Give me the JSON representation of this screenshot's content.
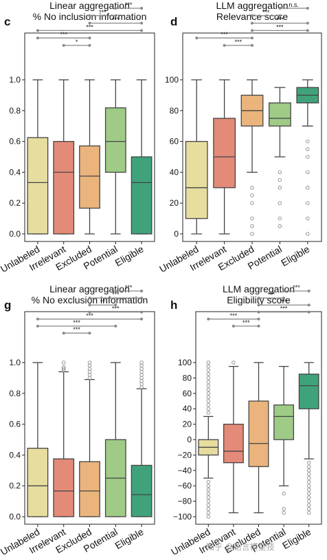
{
  "watermark": "知乎 @语言模型技",
  "colors": [
    "#e6dd9f",
    "#e38a78",
    "#eab47c",
    "#9fcb87",
    "#3fa27b"
  ],
  "chart_data": [
    {
      "panel": "c",
      "type": "box",
      "title": [
        "Linear aggregation",
        "% No inclusion information"
      ],
      "categories": [
        "Unlabeled",
        "Irrelevant",
        "Excluded",
        "Potential",
        "Eligible"
      ],
      "ylim": [
        -0.05,
        1.1
      ],
      "yticks": [
        0.0,
        0.2,
        0.4,
        0.6,
        0.8,
        1.0
      ],
      "ytick_labels": [
        "0.0",
        "0.2",
        "0.4",
        "0.6",
        "0.8",
        "1.0"
      ],
      "boxes": [
        {
          "whislo": 0.0,
          "q1": 0.0,
          "med": 0.333,
          "q3": 0.625,
          "whishi": 1.0,
          "fliers": []
        },
        {
          "whislo": 0.0,
          "q1": 0.0,
          "med": 0.4,
          "q3": 0.6,
          "whishi": 1.0,
          "fliers": []
        },
        {
          "whislo": 0.0,
          "q1": 0.167,
          "med": 0.375,
          "q3": 0.571,
          "whishi": 1.0,
          "fliers": []
        },
        {
          "whislo": 0.0,
          "q1": 0.4,
          "med": 0.6,
          "q3": 0.818,
          "whishi": 1.0,
          "fliers": []
        },
        {
          "whislo": 0.0,
          "q1": 0.0,
          "med": 0.333,
          "q3": 0.5,
          "whishi": 1.0,
          "fliers": []
        }
      ],
      "brackets": [
        {
          "from": 1,
          "to": 2,
          "label": "*"
        },
        {
          "from": 0,
          "to": 2,
          "label": "***"
        },
        {
          "from": 0,
          "to": 4,
          "label": "***"
        },
        {
          "from": 2,
          "to": 4,
          "label": "***"
        },
        {
          "from": 2,
          "to": 3,
          "label": "***"
        },
        {
          "from": 3,
          "to": 4,
          "label": "***"
        }
      ]
    },
    {
      "panel": "d",
      "type": "box",
      "title": [
        "LLM aggregation",
        "Relevance score"
      ],
      "categories": [
        "Unlabeled",
        "Irrelevant",
        "Excluded",
        "Potential",
        "Eligible"
      ],
      "ylim": [
        -5,
        110
      ],
      "yticks": [
        0,
        20,
        40,
        60,
        80,
        100
      ],
      "ytick_labels": [
        "0",
        "20",
        "40",
        "60",
        "80",
        "100"
      ],
      "boxes": [
        {
          "whislo": 0,
          "q1": 10,
          "med": 30,
          "q3": 60,
          "whishi": 100,
          "fliers": []
        },
        {
          "whislo": 0,
          "q1": 30,
          "med": 50,
          "q3": 75,
          "whishi": 100,
          "fliers": []
        },
        {
          "whislo": 40,
          "q1": 70,
          "med": 80,
          "q3": 90,
          "whishi": 100,
          "fliers": [
            30,
            25,
            20,
            10,
            5,
            0
          ]
        },
        {
          "whislo": 50,
          "q1": 70,
          "med": 75,
          "q3": 85,
          "whishi": 95,
          "fliers": [
            40,
            35,
            30,
            20,
            10,
            5
          ]
        },
        {
          "whislo": 70,
          "q1": 85,
          "med": 90,
          "q3": 95,
          "whishi": 100,
          "fliers": [
            60,
            55,
            50,
            40,
            30,
            20,
            10,
            0
          ]
        }
      ],
      "brackets": [
        {
          "from": 1,
          "to": 2,
          "label": "***"
        },
        {
          "from": 0,
          "to": 2,
          "label": "***"
        },
        {
          "from": 2,
          "to": 4,
          "label": "***"
        },
        {
          "from": 2,
          "to": 4,
          "label": "***"
        },
        {
          "from": 2,
          "to": 3,
          "label": "***"
        },
        {
          "from": 3,
          "to": 4,
          "label": "n.s."
        }
      ]
    },
    {
      "panel": "g",
      "type": "box",
      "title": [
        "Linear aggregation",
        "% No exclusion information"
      ],
      "categories": [
        "Unlabeled",
        "Irrelevant",
        "Excluded",
        "Potential",
        "Eligible"
      ],
      "ylim": [
        -0.05,
        1.1
      ],
      "yticks": [
        0.0,
        0.2,
        0.4,
        0.6,
        0.8,
        1.0
      ],
      "ytick_labels": [
        "0.0",
        "0.2",
        "0.4",
        "0.6",
        "0.8",
        "1.0"
      ],
      "boxes": [
        {
          "whislo": 0.0,
          "q1": 0.0,
          "med": 0.2,
          "q3": 0.444,
          "whishi": 1.0,
          "fliers": []
        },
        {
          "whislo": 0.0,
          "q1": 0.0,
          "med": 0.167,
          "q3": 0.375,
          "whishi": 0.94,
          "fliers": [
            0.95,
            0.96,
            0.97,
            1.0
          ]
        },
        {
          "whislo": 0.0,
          "q1": 0.0,
          "med": 0.167,
          "q3": 0.357,
          "whishi": 0.89,
          "fliers": [
            0.9,
            0.92,
            0.94,
            0.96,
            0.98,
            1.0
          ]
        },
        {
          "whislo": 0.0,
          "q1": 0.0,
          "med": 0.25,
          "q3": 0.5,
          "whishi": 1.0,
          "fliers": []
        },
        {
          "whislo": 0.0,
          "q1": 0.0,
          "med": 0.143,
          "q3": 0.333,
          "whishi": 0.83,
          "fliers": [
            0.84,
            0.86,
            0.88,
            0.9,
            0.92,
            0.94,
            0.96,
            0.98,
            1.0
          ]
        }
      ],
      "brackets": [
        {
          "from": 1,
          "to": 2,
          "label": "***"
        },
        {
          "from": 0,
          "to": 3,
          "label": "***"
        },
        {
          "from": 0,
          "to": 4,
          "label": "***"
        },
        {
          "from": 2,
          "to": 4,
          "label": "***"
        },
        {
          "from": 2,
          "to": 3,
          "label": "**"
        },
        {
          "from": 2,
          "to": 4,
          "label": "***"
        },
        {
          "from": 3,
          "to": 4,
          "label": "***"
        }
      ]
    },
    {
      "panel": "h",
      "type": "box",
      "title": [
        "LLM aggregation",
        "Eligibility score"
      ],
      "categories": [
        "Unlabeled",
        "Irrelevant",
        "Excluded",
        "Potential",
        "Eligible"
      ],
      "ylim": [
        -105,
        110
      ],
      "yticks": [
        -100,
        -80,
        -60,
        -40,
        -20,
        0,
        20,
        40,
        60,
        80,
        100
      ],
      "ytick_labels": [
        "−100",
        "−80",
        "−60",
        "−40",
        "−20",
        "0",
        "20",
        "40",
        "60",
        "80",
        "100"
      ],
      "boxes": [
        {
          "whislo": -50,
          "q1": -20,
          "med": -10,
          "q3": 0,
          "whishi": 30,
          "fliers": [
            35,
            40,
            45,
            50,
            55,
            60,
            65,
            70,
            75,
            80,
            85,
            90,
            95,
            100,
            -55,
            -60,
            -65,
            -70,
            -75,
            -80,
            -85,
            -90,
            -95,
            -100
          ]
        },
        {
          "whislo": -95,
          "q1": -30,
          "med": -15,
          "q3": 20,
          "whishi": 95,
          "fliers": [
            100
          ]
        },
        {
          "whislo": -95,
          "q1": -35,
          "med": -5,
          "q3": 50,
          "whishi": 100,
          "fliers": []
        },
        {
          "whislo": -60,
          "q1": 0,
          "med": 30,
          "q3": 45,
          "whishi": 95,
          "fliers": [
            -70,
            -90,
            -95
          ]
        },
        {
          "whislo": -25,
          "q1": 40,
          "med": 70,
          "q3": 85,
          "whishi": 100,
          "fliers": [
            -30,
            -35,
            -40,
            -45,
            -50,
            -55,
            -60,
            -65,
            -70,
            -75,
            -80,
            -85,
            -90,
            -95
          ]
        }
      ],
      "brackets": [
        {
          "from": 1,
          "to": 2,
          "label": "***"
        },
        {
          "from": 0,
          "to": 2,
          "label": "***"
        },
        {
          "from": 2,
          "to": 4,
          "label": "***"
        },
        {
          "from": 2,
          "to": 4,
          "label": "***"
        },
        {
          "from": 2,
          "to": 3,
          "label": "***"
        },
        {
          "from": 3,
          "to": 4,
          "label": "***"
        }
      ]
    }
  ]
}
